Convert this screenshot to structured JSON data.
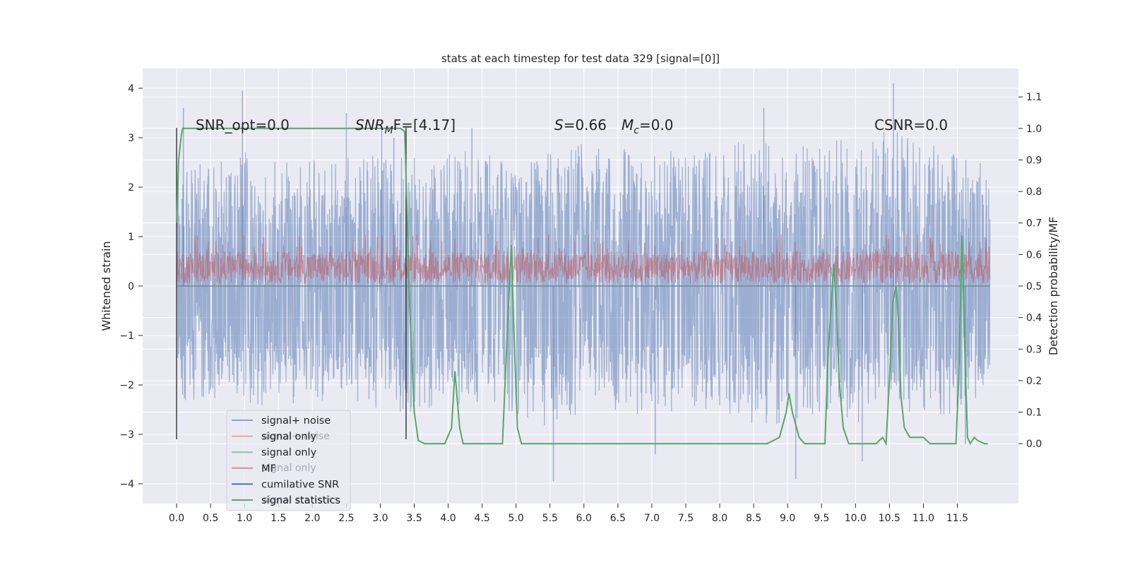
{
  "chart_data": {
    "type": "line",
    "title": "stats at each timestep for test data 329 [signal=[0]]",
    "xlabel": "",
    "ylabel_left": "Whitened strain",
    "ylabel_right": "Detection probability/MF",
    "xlim": [
      -0.5,
      12.4
    ],
    "ylim_left": [
      -4.4,
      4.4
    ],
    "ylim_right": [
      -0.19,
      1.19
    ],
    "x_ticks": [
      0.0,
      0.5,
      1.0,
      1.5,
      2.0,
      2.5,
      3.0,
      3.5,
      4.0,
      4.5,
      5.0,
      5.5,
      6.0,
      6.5,
      7.0,
      7.5,
      8.0,
      8.5,
      9.0,
      9.5,
      10.0,
      10.5,
      11.0,
      11.5
    ],
    "x_tick_labels": [
      "0.0",
      "0.5",
      "1.0",
      "1.5",
      "2.0",
      "2.5",
      "3.0",
      "3.5",
      "4.0",
      "4.5",
      "5.0",
      "5.5",
      "6.0",
      "6.5",
      "7.0",
      "7.5",
      "8.0",
      "8.5",
      "9.0",
      "9.5",
      "10.0",
      "10.5",
      "11.0",
      "11.5"
    ],
    "y_ticks_left": [
      -4,
      -3,
      -2,
      -1,
      0,
      1,
      2,
      3,
      4
    ],
    "y_tick_labels_left": [
      "−4",
      "−3",
      "−2",
      "−1",
      "0",
      "1",
      "2",
      "3",
      "4"
    ],
    "y_ticks_right": [
      0.0,
      0.1,
      0.2,
      0.3,
      0.4,
      0.5,
      0.6,
      0.7,
      0.8,
      0.9,
      1.0,
      1.1
    ],
    "y_tick_labels_right": [
      "0.0",
      "0.1",
      "0.2",
      "0.3",
      "0.4",
      "0.5",
      "0.6",
      "0.7",
      "0.8",
      "0.9",
      "1.0",
      "1.1"
    ],
    "grid": true,
    "legend_placement": "lower-left",
    "annotations": {
      "snr_opt": "SNR_opt=0.0",
      "snr_mf_main": "SNR",
      "snr_mf_sub": "M",
      "snr_mf_rest": "F=[4.17]",
      "s_main": "S",
      "s_rest": "=0.66",
      "mc_main": "M",
      "mc_sub": "c",
      "mc_rest": "=0.0",
      "csnr": "CSNR=0.0"
    },
    "legend": [
      {
        "label": "signal+ noise",
        "color": "#4c72b0"
      },
      {
        "label": "signal only",
        "color": "#dd8452"
      },
      {
        "label": "signal only",
        "color": "#55a868"
      },
      {
        "label": "MF",
        "color": "#c44e52"
      },
      {
        "label": "cumilative SNR",
        "color": "#4c72b0"
      },
      {
        "label": "signal statistics",
        "color": "#55a868"
      }
    ],
    "legend_ghost_labels": [
      "signal+ noise",
      "signal only",
      "signal statistics"
    ],
    "vertical_markers_x": [
      0.0,
      3.38
    ],
    "series": [
      {
        "name": "signal+ noise",
        "axis": "left",
        "color": "#4c72b0",
        "x_range": [
          0.0,
          11.98
        ],
        "envelope_upper": [
          [
            0.0,
            2.6
          ],
          [
            0.5,
            2.4
          ],
          [
            1.0,
            2.8
          ],
          [
            1.5,
            2.5
          ],
          [
            2.0,
            2.6
          ],
          [
            2.5,
            2.6
          ],
          [
            3.0,
            2.8
          ],
          [
            3.5,
            2.6
          ],
          [
            4.0,
            2.7
          ],
          [
            4.5,
            2.8
          ],
          [
            5.0,
            2.6
          ],
          [
            5.5,
            2.7
          ],
          [
            6.0,
            2.9
          ],
          [
            6.5,
            2.8
          ],
          [
            7.0,
            2.9
          ],
          [
            7.5,
            2.7
          ],
          [
            8.0,
            2.8
          ],
          [
            8.5,
            3.0
          ],
          [
            9.0,
            2.8
          ],
          [
            9.5,
            2.9
          ],
          [
            10.0,
            3.0
          ],
          [
            10.5,
            3.3
          ],
          [
            11.0,
            2.9
          ],
          [
            11.5,
            2.7
          ],
          [
            11.98,
            2.4
          ]
        ],
        "envelope_lower": [
          [
            0.0,
            -2.4
          ],
          [
            0.5,
            -2.3
          ],
          [
            1.0,
            -2.4
          ],
          [
            1.5,
            -2.5
          ],
          [
            2.0,
            -2.3
          ],
          [
            2.5,
            -2.4
          ],
          [
            3.0,
            -2.5
          ],
          [
            3.5,
            -2.6
          ],
          [
            4.0,
            -2.5
          ],
          [
            4.5,
            -2.4
          ],
          [
            5.0,
            -2.6
          ],
          [
            5.5,
            -2.9
          ],
          [
            6.0,
            -2.6
          ],
          [
            6.5,
            -2.5
          ],
          [
            7.0,
            -2.7
          ],
          [
            7.5,
            -2.6
          ],
          [
            8.0,
            -2.5
          ],
          [
            8.5,
            -2.8
          ],
          [
            9.0,
            -2.9
          ],
          [
            9.5,
            -2.6
          ],
          [
            10.0,
            -2.8
          ],
          [
            10.5,
            -2.5
          ],
          [
            11.0,
            -2.6
          ],
          [
            11.5,
            -2.7
          ],
          [
            11.98,
            -2.3
          ]
        ],
        "core_band": [
          -1.8,
          1.9
        ],
        "peaks": [
          [
            0.1,
            3.6
          ],
          [
            0.97,
            3.95
          ],
          [
            2.5,
            3.5
          ],
          [
            3.02,
            3.25
          ],
          [
            3.2,
            3.0
          ],
          [
            4.35,
            3.2
          ],
          [
            5.55,
            -3.95
          ],
          [
            7.05,
            -3.4
          ],
          [
            8.65,
            3.6
          ],
          [
            9.12,
            -3.9
          ],
          [
            10.1,
            -3.55
          ],
          [
            10.56,
            4.1
          ],
          [
            11.62,
            -3.2
          ]
        ]
      },
      {
        "name": "signal only",
        "axis": "left",
        "color": "#dd8452",
        "x": [
          0.0,
          11.98
        ],
        "y": [
          0.0,
          0.0
        ]
      },
      {
        "name": "signal only",
        "axis": "left",
        "color": "#55a868",
        "x": [
          0.0,
          11.98
        ],
        "y": [
          0.0,
          0.0
        ]
      },
      {
        "name": "MF",
        "axis": "left",
        "color": "#c44e52",
        "x_range": [
          0.0,
          11.98
        ],
        "band": [
          0.05,
          0.7
        ],
        "spike_max": 1.05
      },
      {
        "name": "cumilative SNR",
        "axis": "left",
        "color": "#4c72b0",
        "x": [
          0.0,
          11.98
        ],
        "y": [
          0.0,
          0.0
        ]
      },
      {
        "name": "signal statistics",
        "axis": "right",
        "color": "#55a868",
        "x": [
          0.0,
          0.03,
          0.07,
          0.09,
          0.12,
          3.3,
          3.36,
          3.4,
          3.43,
          3.46,
          3.5,
          3.56,
          3.65,
          3.8,
          3.95,
          4.05,
          4.1,
          4.13,
          4.17,
          4.22,
          4.27,
          4.4,
          4.6,
          4.8,
          4.88,
          4.93,
          4.97,
          5.02,
          5.08,
          5.2,
          6.0,
          7.0,
          8.0,
          8.5,
          8.7,
          8.88,
          8.98,
          9.02,
          9.07,
          9.12,
          9.17,
          9.25,
          9.35,
          9.55,
          9.6,
          9.64,
          9.68,
          9.72,
          9.76,
          9.82,
          9.9,
          10.1,
          10.3,
          10.4,
          10.45,
          10.5,
          10.55,
          10.6,
          10.63,
          10.67,
          10.72,
          10.8,
          10.9,
          10.95,
          11.0,
          11.1,
          11.3,
          11.48,
          11.52,
          11.57,
          11.61,
          11.65,
          11.69,
          11.75,
          11.8,
          11.9,
          11.95
        ],
        "y": [
          0.7,
          0.9,
          0.98,
          1.0,
          1.0,
          1.0,
          0.99,
          0.7,
          0.45,
          0.3,
          0.1,
          0.01,
          0.0,
          0.0,
          0.0,
          0.05,
          0.23,
          0.15,
          0.05,
          0.0,
          0.0,
          0.0,
          0.0,
          0.0,
          0.4,
          0.63,
          0.35,
          0.05,
          0.0,
          0.0,
          0.0,
          0.0,
          0.0,
          0.0,
          0.0,
          0.02,
          0.1,
          0.16,
          0.1,
          0.06,
          0.02,
          0.0,
          0.0,
          0.0,
          0.3,
          0.43,
          0.57,
          0.43,
          0.2,
          0.05,
          0.0,
          0.0,
          0.0,
          0.02,
          0.0,
          0.2,
          0.45,
          0.5,
          0.4,
          0.15,
          0.05,
          0.02,
          0.02,
          0.02,
          0.02,
          0.0,
          0.0,
          0.0,
          0.2,
          0.66,
          0.3,
          0.02,
          0.0,
          0.02,
          0.01,
          0.0,
          0.0
        ]
      }
    ]
  }
}
